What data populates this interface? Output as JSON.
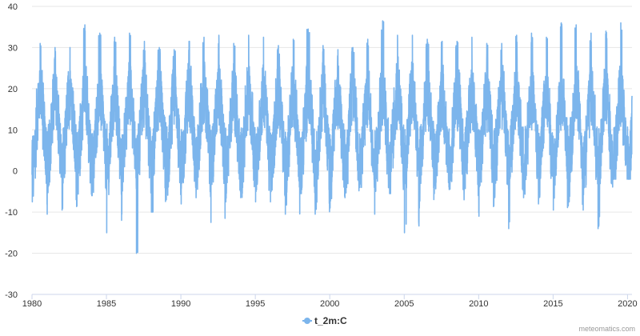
{
  "chart_data": {
    "type": "line",
    "title": "",
    "xlabel": "",
    "ylabel": "",
    "xlim": [
      1980,
      2020.3
    ],
    "ylim": [
      -30,
      40
    ],
    "x_ticks": [
      1980,
      1985,
      1990,
      1995,
      2000,
      2005,
      2010,
      2015,
      2020
    ],
    "y_ticks": [
      -30,
      -20,
      -10,
      0,
      10,
      20,
      30,
      40
    ],
    "grid": "horizontal",
    "legend_position": "bottom-center",
    "series": [
      {
        "name": "t_2m:C",
        "color": "#7cb5ec",
        "annual_maxima": [
          31,
          30,
          30,
          35.5,
          33.5,
          32.5,
          33.5,
          31.5,
          30,
          29.5,
          31.5,
          32.5,
          33,
          31,
          33,
          32.5,
          30.5,
          32,
          34.5,
          30.5,
          29.5,
          30,
          32,
          36.5,
          33,
          33,
          32,
          31.5,
          31.5,
          32.5,
          31,
          31,
          33,
          33.5,
          32.5,
          36,
          35.5,
          33.5,
          34,
          36
        ],
        "annual_minima": [
          -7.5,
          -10.5,
          -9.5,
          -8.5,
          -6,
          -15,
          -12,
          -20,
          -10,
          -7,
          -8,
          -6.5,
          -12.5,
          -7.5,
          -6.5,
          -7.5,
          -7.5,
          -10.5,
          -5.5,
          -10.5,
          -9,
          -6.5,
          -4,
          -10.5,
          -5.5,
          -15,
          -9,
          -5.5,
          -4.5,
          -7,
          -11,
          -8.5,
          -14,
          -6.5,
          -8,
          -9.5,
          -8.5,
          -9.5,
          -14,
          -2
        ]
      }
    ]
  },
  "legend": {
    "items": [
      {
        "label": "t_2m:C",
        "color": "#7cb5ec"
      }
    ]
  },
  "credit": "meteomatics.com"
}
